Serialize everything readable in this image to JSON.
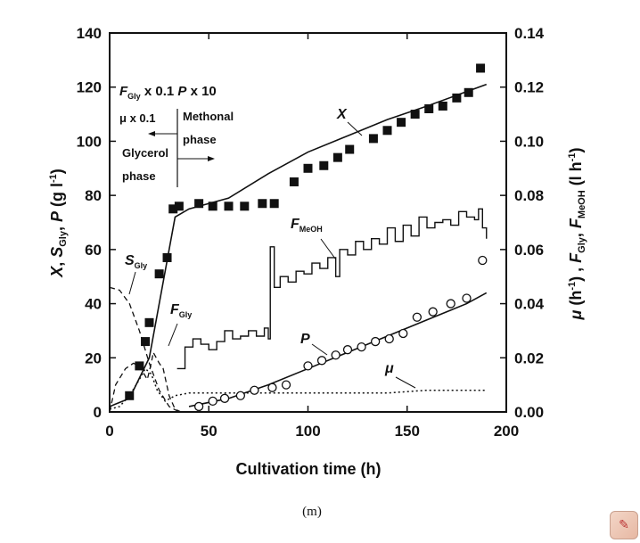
{
  "chart_data": {
    "type": "line",
    "xlabel": "Cultivation time (h)",
    "ylabel_left": "X, S_Gly, P (g l⁻¹)",
    "ylabel_right": "μ (h⁻¹), F_Gly, F_MeOH (l h⁻¹)",
    "xlim": [
      0,
      200
    ],
    "ylim_left": [
      0,
      140
    ],
    "ylim_right": [
      0,
      0.14
    ],
    "x_ticks": [
      "0",
      "50",
      "100",
      "150",
      "200"
    ],
    "y_left_ticks": [
      "0",
      "20",
      "40",
      "60",
      "80",
      "100",
      "120",
      "140"
    ],
    "y_right_ticks": [
      "0.00",
      "0.02",
      "0.04",
      "0.06",
      "0.08",
      "0.10",
      "0.12",
      "0.14"
    ],
    "series": [
      {
        "name": "X",
        "style": "filled-square",
        "points": [
          [
            10,
            6
          ],
          [
            15,
            17
          ],
          [
            18,
            26
          ],
          [
            20,
            33
          ],
          [
            25,
            51
          ],
          [
            29,
            57
          ],
          [
            32,
            75
          ],
          [
            35,
            76
          ],
          [
            45,
            77
          ],
          [
            52,
            76
          ],
          [
            60,
            76
          ],
          [
            68,
            76
          ],
          [
            77,
            77
          ],
          [
            83,
            77
          ],
          [
            93,
            85
          ],
          [
            100,
            90
          ],
          [
            108,
            91
          ],
          [
            115,
            94
          ],
          [
            121,
            97
          ],
          [
            133,
            101
          ],
          [
            140,
            104
          ],
          [
            147,
            107
          ],
          [
            154,
            110
          ],
          [
            161,
            112
          ],
          [
            168,
            113
          ],
          [
            175,
            116
          ],
          [
            181,
            118
          ],
          [
            187,
            127
          ]
        ]
      },
      {
        "name": "X",
        "style": "solid-line",
        "points": [
          [
            0,
            2
          ],
          [
            10,
            5
          ],
          [
            20,
            20
          ],
          [
            28,
            52
          ],
          [
            33,
            72
          ],
          [
            40,
            75
          ],
          [
            50,
            77
          ],
          [
            60,
            79
          ],
          [
            80,
            88
          ],
          [
            100,
            96
          ],
          [
            120,
            102
          ],
          [
            140,
            108
          ],
          [
            160,
            113
          ],
          [
            190,
            121
          ]
        ]
      },
      {
        "name": "P",
        "style": "open-circle",
        "points": [
          [
            45,
            2
          ],
          [
            52,
            4
          ],
          [
            58,
            5
          ],
          [
            66,
            6
          ],
          [
            73,
            8
          ],
          [
            82,
            9
          ],
          [
            89,
            10
          ],
          [
            100,
            17
          ],
          [
            107,
            19
          ],
          [
            114,
            21
          ],
          [
            120,
            23
          ],
          [
            127,
            24
          ],
          [
            134,
            26
          ],
          [
            141,
            27
          ],
          [
            148,
            29
          ],
          [
            155,
            35
          ],
          [
            163,
            37
          ],
          [
            172,
            40
          ],
          [
            180,
            42
          ],
          [
            188,
            56
          ]
        ]
      },
      {
        "name": "P",
        "style": "solid-line",
        "points": [
          [
            40,
            2
          ],
          [
            60,
            5
          ],
          [
            80,
            10
          ],
          [
            100,
            16
          ],
          [
            120,
            22
          ],
          [
            140,
            28
          ],
          [
            160,
            34
          ],
          [
            180,
            40
          ],
          [
            190,
            44
          ]
        ]
      },
      {
        "name": "S_Gly",
        "style": "dashed-line",
        "points": [
          [
            0,
            46
          ],
          [
            5,
            45
          ],
          [
            10,
            40
          ],
          [
            15,
            30
          ],
          [
            20,
            18
          ],
          [
            25,
            8
          ],
          [
            30,
            2
          ],
          [
            35,
            0
          ]
        ]
      },
      {
        "name": "F_Gly",
        "style": "dashed-line",
        "points": [
          [
            0,
            0.0
          ],
          [
            3,
            0.01
          ],
          [
            8,
            0.016
          ],
          [
            12,
            0.018
          ],
          [
            15,
            0.017
          ],
          [
            19,
            0.012
          ],
          [
            21,
            0.018
          ],
          [
            22,
            0.022
          ],
          [
            25,
            0.018
          ],
          [
            27,
            0.016
          ],
          [
            30,
            0.006
          ],
          [
            33,
            0.001
          ],
          [
            36,
            0.0
          ]
        ]
      },
      {
        "name": "F_MeOH",
        "style": "step-line",
        "points": [
          [
            34,
            0.016
          ],
          [
            38,
            0.024
          ],
          [
            42,
            0.027
          ],
          [
            46,
            0.025
          ],
          [
            50,
            0.023
          ],
          [
            54,
            0.026
          ],
          [
            58,
            0.03
          ],
          [
            62,
            0.027
          ],
          [
            66,
            0.028
          ],
          [
            70,
            0.03
          ],
          [
            74,
            0.028
          ],
          [
            78,
            0.031
          ],
          [
            80,
            0.027
          ],
          [
            81,
            0.061
          ],
          [
            83,
            0.046
          ],
          [
            86,
            0.05
          ],
          [
            90,
            0.048
          ],
          [
            94,
            0.052
          ],
          [
            98,
            0.051
          ],
          [
            102,
            0.055
          ],
          [
            106,
            0.053
          ],
          [
            110,
            0.057
          ],
          [
            114,
            0.05
          ],
          [
            116,
            0.06
          ],
          [
            120,
            0.058
          ],
          [
            124,
            0.063
          ],
          [
            128,
            0.06
          ],
          [
            132,
            0.064
          ],
          [
            136,
            0.062
          ],
          [
            140,
            0.068
          ],
          [
            144,
            0.063
          ],
          [
            148,
            0.069
          ],
          [
            152,
            0.065
          ],
          [
            156,
            0.072
          ],
          [
            160,
            0.068
          ],
          [
            164,
            0.07
          ],
          [
            168,
            0.071
          ],
          [
            172,
            0.069
          ],
          [
            176,
            0.074
          ],
          [
            180,
            0.072
          ],
          [
            184,
            0.071
          ],
          [
            186,
            0.075
          ],
          [
            188,
            0.068
          ],
          [
            190,
            0.064
          ]
        ]
      },
      {
        "name": "μ",
        "style": "dotted-line",
        "points": [
          [
            0,
            0.001
          ],
          [
            5,
            0.002
          ],
          [
            10,
            0.006
          ],
          [
            15,
            0.012
          ],
          [
            18,
            0.016
          ],
          [
            21,
            0.014
          ],
          [
            24,
            0.008
          ],
          [
            28,
            0.004
          ],
          [
            33,
            0.006
          ],
          [
            40,
            0.007
          ],
          [
            60,
            0.007
          ],
          [
            80,
            0.007
          ],
          [
            100,
            0.007
          ],
          [
            120,
            0.007
          ],
          [
            140,
            0.007
          ],
          [
            160,
            0.008
          ],
          [
            190,
            0.008
          ]
        ]
      }
    ],
    "annotations": {
      "scale_line1": "F_Gly x 0.1  P x 10",
      "scale_line2": "μ x 0.1",
      "methonal": "Methonal",
      "phase": "phase",
      "glycerol": "Glycerol",
      "phase2": "phase",
      "label_X": "X",
      "label_P": "P",
      "label_mu": "μ",
      "label_SGly": "S",
      "label_SGly_sub": "Gly",
      "label_FGly": "F",
      "label_FGly_sub": "Gly",
      "label_FMeOH": "F",
      "label_FMeOH_sub": "MeOH"
    },
    "grid": false,
    "legend": "none"
  },
  "caption": "(m)",
  "logo_icon": "app-badge-icon"
}
